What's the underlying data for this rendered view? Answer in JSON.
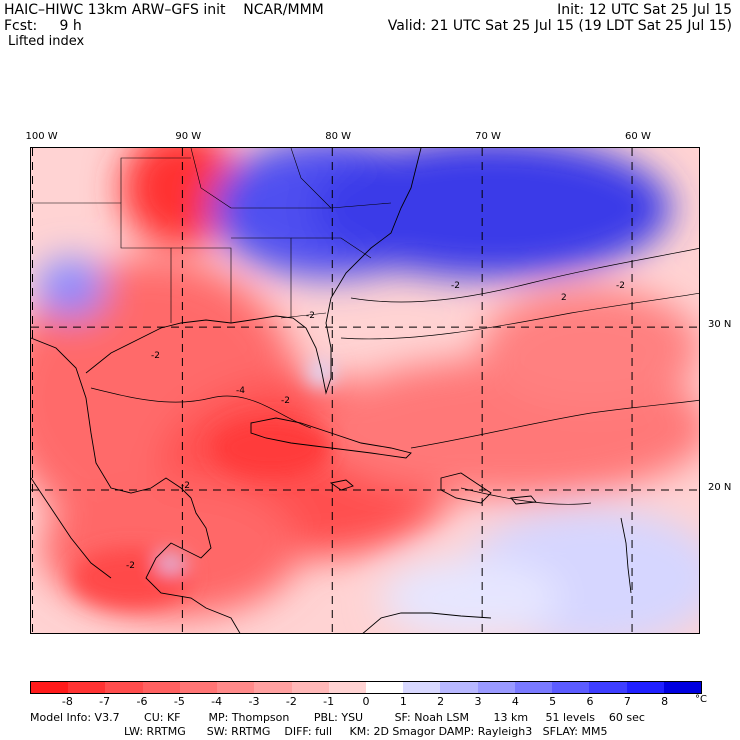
{
  "header": {
    "model_title": "HAIC–HIWC 13km ARW–GFS init    NCAR/MMM",
    "forecast": "Fcst:     9 h",
    "field": "Lifted index",
    "init": "Init: 12 UTC Sat 25 Jul 15",
    "valid": "Valid: 21 UTC Sat 25 Jul 15 (19 LDT Sat 25 Jul 15)"
  },
  "map": {
    "lon_labels": [
      {
        "text": "100 W",
        "lon": -100
      },
      {
        "text": "90 W",
        "lon": -90
      },
      {
        "text": "80 W",
        "lon": -80
      },
      {
        "text": "70 W",
        "lon": -70
      },
      {
        "text": "60 W",
        "lon": -60
      }
    ],
    "lat_labels": [
      {
        "text": "30 N",
        "lat": 30
      },
      {
        "text": "20 N",
        "lat": 20
      }
    ],
    "lon_range": [
      -100.1,
      -55.4
    ],
    "lat_range": [
      11.1,
      41.0
    ],
    "contour_labels": [
      "-2",
      "-2",
      "-2",
      "-2",
      "-4",
      "-2",
      "-2",
      "2",
      "-2"
    ]
  },
  "colorbar": {
    "ticks": [
      "-8",
      "-7",
      "-6",
      "-5",
      "-4",
      "-3",
      "-2",
      "-1",
      "0",
      "1",
      "2",
      "3",
      "4",
      "5",
      "6",
      "7",
      "8"
    ],
    "unit": "°C",
    "colors": [
      "#ff1a1a",
      "#ff3333",
      "#ff4d4d",
      "#ff6161",
      "#ff7575",
      "#ff8a8a",
      "#ffa1a1",
      "#ffb8b8",
      "#ffd3d3",
      "#ffffff",
      "#d8d8ff",
      "#b8b8ff",
      "#9a9aff",
      "#7a7aff",
      "#5c5cff",
      "#3e3eff",
      "#2020ff",
      "#0000e0"
    ]
  },
  "model_info": {
    "line1": "Model Info: V3.7       CU: KF        MP: Thompson       PBL: YSU         SF: Noah LSM       13 km     51 levels    60 sec",
    "line2": "LW: RRTMG      SW: RRTMG    DIFF: full     KM: 2D Smagor DAMP: Rayleigh3   SFLAY: MM5"
  }
}
